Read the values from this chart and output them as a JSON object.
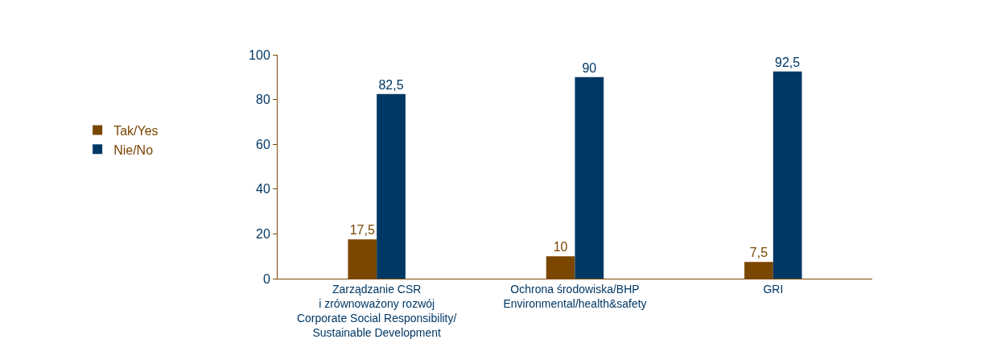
{
  "chart_data": {
    "type": "bar",
    "categories": [
      "Zarządzanie CSR\ni zrównoważony rozwój\nCorporate Social Responsibility/\nSustainable Development",
      "Ochrona środowiska/BHP\nEnvironmental/health&safety",
      "GRI"
    ],
    "series": [
      {
        "name": "Tak/Yes",
        "color": "#7b4700",
        "values": [
          17.5,
          10,
          7.5
        ],
        "value_labels": [
          "17,5",
          "10",
          "7,5"
        ]
      },
      {
        "name": "Nie/No",
        "color": "#003865",
        "values": [
          82.5,
          90,
          92.5
        ],
        "value_labels": [
          "82,5",
          "90",
          "92,5"
        ]
      }
    ],
    "ylim": [
      0,
      100
    ],
    "yticks": [
      0,
      20,
      40,
      60,
      80,
      100
    ],
    "legend": "left"
  }
}
